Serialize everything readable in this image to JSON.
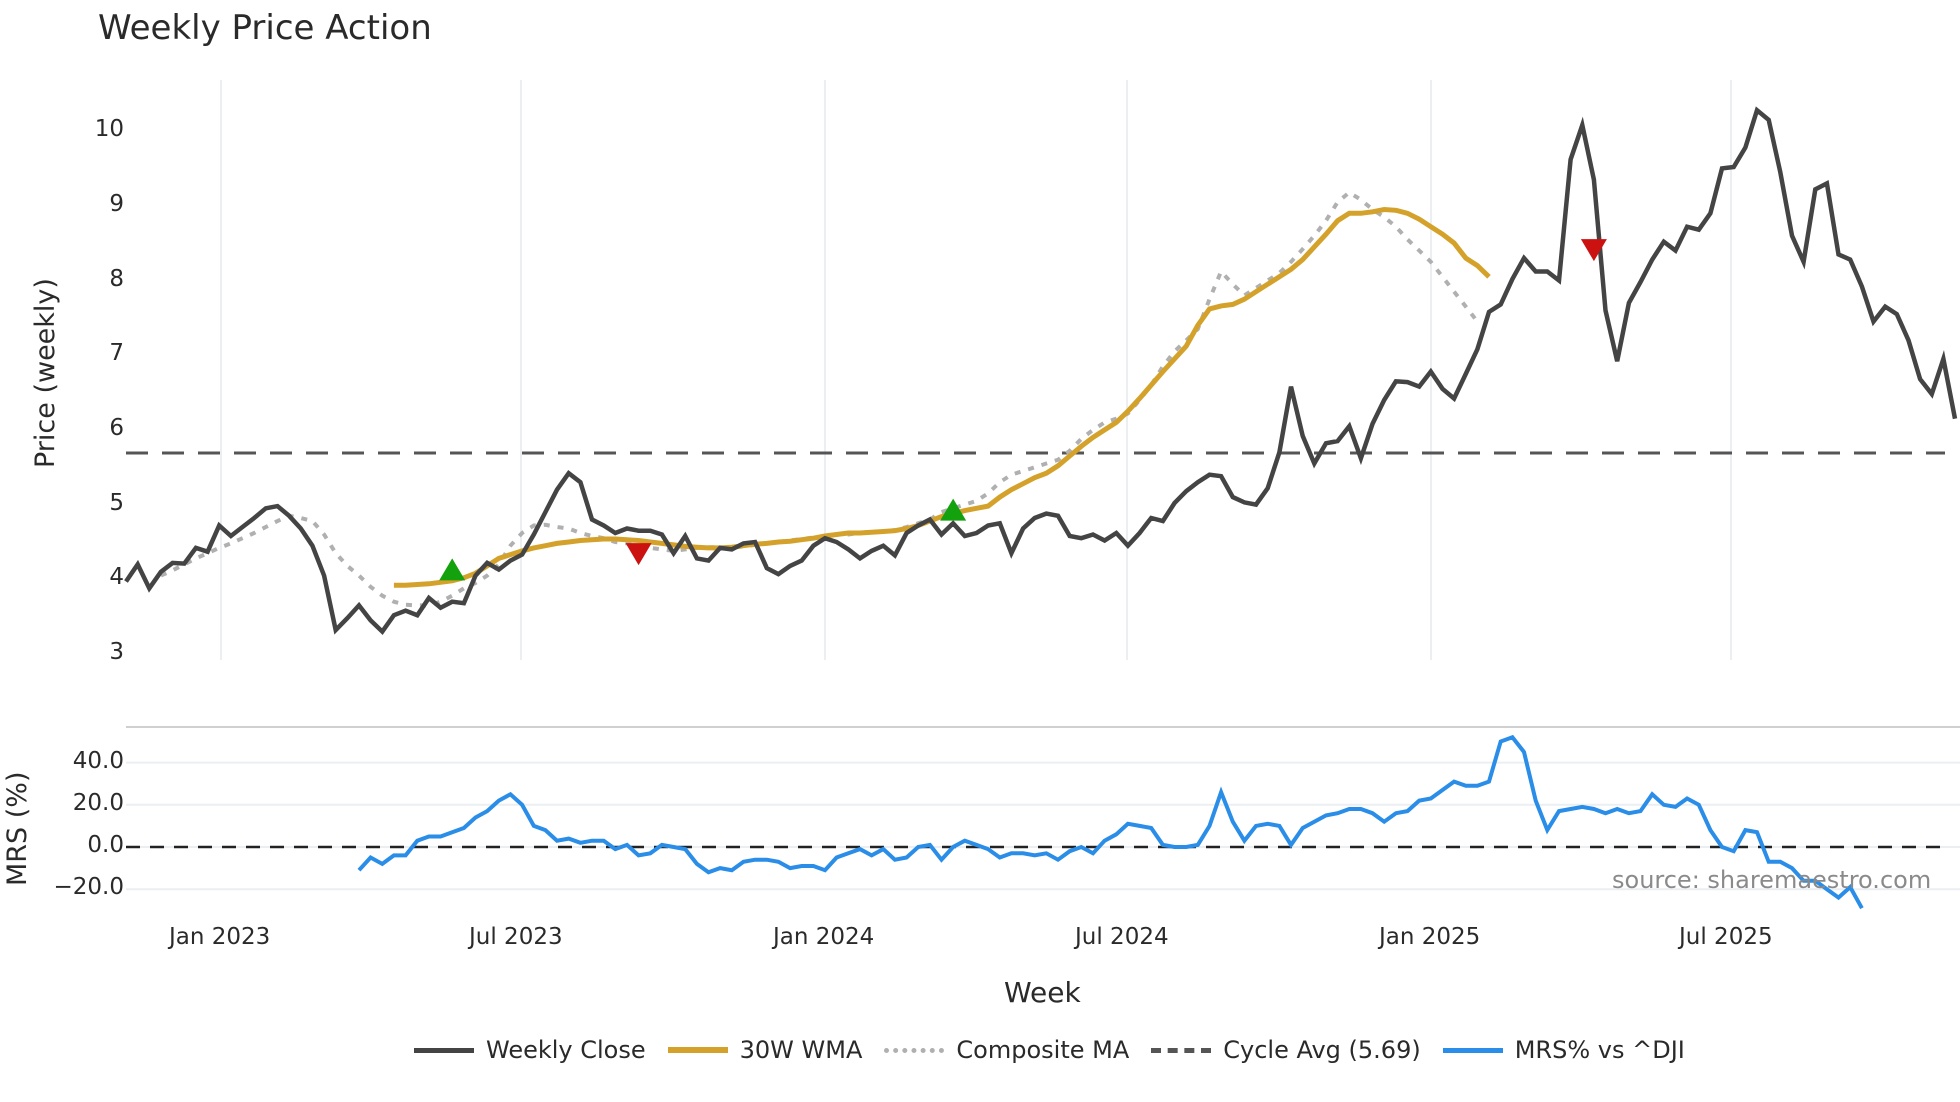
{
  "title": "Weekly Price Action",
  "source": "source: sharemaestro.com",
  "xlabel": "Week",
  "price_ylabel": "Price (weekly)",
  "mrs_ylabel": "MRS (%)",
  "price_yticks": [
    "10",
    "9",
    "8",
    "7",
    "6",
    "5",
    "4",
    "3"
  ],
  "mrs_yticks": [
    "40.0",
    "20.0",
    "0.0",
    "−20.0"
  ],
  "xticks": [
    "Jan 2023",
    "Jul 2023",
    "Jan 2024",
    "Jul 2024",
    "Jan 2025",
    "Jul 2025"
  ],
  "legend": [
    {
      "label": "Weekly Close",
      "color": "#444444",
      "style": "solid"
    },
    {
      "label": "30W WMA",
      "color": "#d4a22a",
      "style": "solid"
    },
    {
      "label": "Composite MA",
      "color": "#b0b0b0",
      "style": "dotted"
    },
    {
      "label": "Cycle Avg (5.69)",
      "color": "#555555",
      "style": "dashed"
    },
    {
      "label": "MRS% vs ^DJI",
      "color": "#2a8de8",
      "style": "solid"
    }
  ],
  "colors": {
    "close": "#444444",
    "wma": "#d4a22a",
    "composite": "#b0b0b0",
    "cycle": "#555555",
    "mrs": "#2a8de8",
    "buy": "#13a10e",
    "sell": "#cc1111",
    "grid": "#eceff2"
  },
  "chart_data": [
    {
      "type": "line",
      "title": "Weekly Price Action",
      "xlabel": "Week",
      "ylabel": "Price (weekly)",
      "ylim": [
        3,
        10.3
      ],
      "x_start": "2022-11",
      "x_ticks": [
        "Jan 2023",
        "Jul 2023",
        "Jan 2024",
        "Jul 2024",
        "Jan 2025",
        "Jul 2025"
      ],
      "series": [
        {
          "name": "Weekly Close",
          "values": [
            3.97,
            4.2,
            3.88,
            4.1,
            4.22,
            4.21,
            4.42,
            4.37,
            4.72,
            4.58,
            4.7,
            4.82,
            4.95,
            4.98,
            4.85,
            4.68,
            4.45,
            4.05,
            3.32,
            3.48,
            3.65,
            3.45,
            3.3,
            3.52,
            3.58,
            3.52,
            3.75,
            3.62,
            3.7,
            3.68,
            4.05,
            4.22,
            4.13,
            4.25,
            4.33,
            4.6,
            4.9,
            5.2,
            5.42,
            5.3,
            4.8,
            4.72,
            4.62,
            4.68,
            4.65,
            4.65,
            4.6,
            4.35,
            4.58,
            4.28,
            4.25,
            4.42,
            4.4,
            4.48,
            4.5,
            4.15,
            4.07,
            4.18,
            4.25,
            4.45,
            4.55,
            4.5,
            4.4,
            4.28,
            4.38,
            4.45,
            4.32,
            4.62,
            4.72,
            4.8,
            4.6,
            4.75,
            4.58,
            4.62,
            4.72,
            4.75,
            4.35,
            4.68,
            4.82,
            4.88,
            4.85,
            4.58,
            4.55,
            4.6,
            4.52,
            4.62,
            4.45,
            4.62,
            4.82,
            4.78,
            5.02,
            5.18,
            5.3,
            5.4,
            5.38,
            5.1,
            5.03,
            5.0,
            5.22,
            5.7,
            6.58,
            5.92,
            5.55,
            5.82,
            5.85,
            6.05,
            5.62,
            6.08,
            6.4,
            6.65,
            6.64,
            6.58,
            6.78,
            6.55,
            6.42,
            6.75,
            7.08,
            7.58,
            7.68,
            8.02,
            8.3,
            8.12,
            8.12,
            8.0,
            9.62,
            10.08,
            9.35,
            7.6,
            6.92,
            7.7,
            7.98,
            8.28,
            8.52,
            8.4,
            8.72,
            8.68,
            8.9,
            9.5,
            9.52,
            9.78,
            10.28,
            10.15,
            9.45,
            8.6,
            8.25,
            9.22,
            9.3,
            8.35,
            8.28,
            7.92,
            7.45,
            7.65,
            7.55,
            7.2,
            6.68,
            6.48,
            6.95,
            6.15
          ]
        },
        {
          "name": "30W WMA",
          "start_index": 23,
          "values": [
            3.92,
            3.92,
            3.93,
            3.94,
            3.96,
            3.98,
            4.02,
            4.08,
            4.18,
            4.28,
            4.33,
            4.38,
            4.42,
            4.45,
            4.48,
            4.5,
            4.52,
            4.53,
            4.54,
            4.54,
            4.53,
            4.52,
            4.5,
            4.48,
            4.46,
            4.44,
            4.43,
            4.42,
            4.42,
            4.43,
            4.45,
            4.47,
            4.48,
            4.5,
            4.51,
            4.53,
            4.55,
            4.58,
            4.6,
            4.62,
            4.62,
            4.63,
            4.64,
            4.65,
            4.68,
            4.72,
            4.78,
            4.84,
            4.88,
            4.92,
            4.95,
            4.98,
            5.1,
            5.2,
            5.28,
            5.36,
            5.42,
            5.52,
            5.65,
            5.78,
            5.9,
            6.0,
            6.1,
            6.25,
            6.42,
            6.6,
            6.78,
            6.95,
            7.12,
            7.4,
            7.62,
            7.66,
            7.68,
            7.75,
            7.85,
            7.95,
            8.05,
            8.15,
            8.28,
            8.45,
            8.62,
            8.8,
            8.9,
            8.9,
            8.92,
            8.95,
            8.94,
            8.9,
            8.82,
            8.72,
            8.62,
            8.5,
            8.3,
            8.2,
            8.05
          ]
        },
        {
          "name": "Composite MA",
          "start_index": 3,
          "values": [
            4.05,
            4.12,
            4.2,
            4.28,
            4.35,
            4.42,
            4.48,
            4.55,
            4.62,
            4.7,
            4.78,
            4.85,
            4.82,
            4.78,
            4.6,
            4.35,
            4.18,
            4.05,
            3.9,
            3.78,
            3.7,
            3.66,
            3.65,
            3.65,
            3.7,
            3.78,
            3.88,
            3.95,
            4.05,
            4.2,
            4.45,
            4.62,
            4.72,
            4.73,
            4.7,
            4.68,
            4.62,
            4.58,
            4.55,
            4.5,
            4.48,
            4.45,
            4.42,
            4.4,
            4.38,
            4.4,
            4.42,
            4.43,
            4.43,
            4.42,
            4.44,
            4.46,
            4.48,
            4.5,
            4.52,
            4.54,
            4.56,
            4.58,
            4.6,
            4.6,
            4.62,
            4.64,
            4.64,
            4.66,
            4.7,
            4.75,
            4.8,
            4.9,
            4.95,
            5.0,
            5.05,
            5.15,
            5.3,
            5.4,
            5.45,
            5.5,
            5.55,
            5.6,
            5.72,
            5.88,
            6.0,
            6.1,
            6.15,
            6.22,
            6.4,
            6.6,
            6.85,
            7.05,
            7.2,
            7.35,
            7.75,
            8.12,
            7.95,
            7.8,
            7.9,
            8.0,
            8.1,
            8.25,
            8.42,
            8.6,
            8.8,
            9.05,
            9.18,
            9.08,
            8.95,
            8.85,
            8.72,
            8.55,
            8.4,
            8.25,
            8.05,
            7.85,
            7.65,
            7.45
          ]
        }
      ],
      "reference_lines": [
        {
          "name": "Cycle Avg",
          "value": 5.69,
          "style": "dashed"
        }
      ],
      "markers": [
        {
          "type": "buy",
          "index": 28,
          "value": 4.12
        },
        {
          "type": "sell",
          "index": 44,
          "value": 4.35
        },
        {
          "type": "buy",
          "index": 71,
          "value": 4.92
        },
        {
          "type": "sell",
          "index": 126,
          "value": 8.42
        }
      ]
    },
    {
      "type": "line",
      "title": "",
      "ylabel": "MRS (%)",
      "ylim": [
        -28,
        55
      ],
      "series": [
        {
          "name": "MRS% vs ^DJI",
          "start_index": 20,
          "values": [
            -11,
            -5,
            -8,
            -4,
            -4,
            3,
            5,
            5,
            7,
            9,
            14,
            17,
            22,
            25,
            20,
            10,
            8,
            3,
            4,
            2,
            3,
            3,
            -1,
            1,
            -4,
            -3,
            1,
            0,
            -1,
            -8,
            -12,
            -10,
            -11,
            -7,
            -6,
            -6,
            -7,
            -10,
            -9,
            -9,
            -11,
            -5,
            -3,
            -1,
            -4,
            -1,
            -6,
            -5,
            0,
            1,
            -6,
            0,
            3,
            1,
            -1,
            -5,
            -3,
            -3,
            -4,
            -3,
            -6,
            -2,
            0,
            -3,
            3,
            6,
            11,
            10,
            9,
            1,
            0,
            0,
            1,
            10,
            26,
            12,
            3,
            10,
            11,
            10,
            1,
            9,
            12,
            15,
            16,
            18,
            18,
            16,
            12,
            16,
            17,
            22,
            23,
            27,
            31,
            29,
            29,
            31,
            50,
            52,
            45,
            22,
            8,
            17,
            18,
            19,
            18,
            16,
            18,
            16,
            17,
            25,
            20,
            19,
            23,
            20,
            8,
            0,
            -2,
            8,
            7,
            -7,
            -7,
            -10,
            -16,
            -16,
            -20,
            -24,
            -19,
            -29
          ]
        }
      ],
      "reference_lines": [
        {
          "value": 0,
          "style": "dashed"
        }
      ]
    }
  ]
}
